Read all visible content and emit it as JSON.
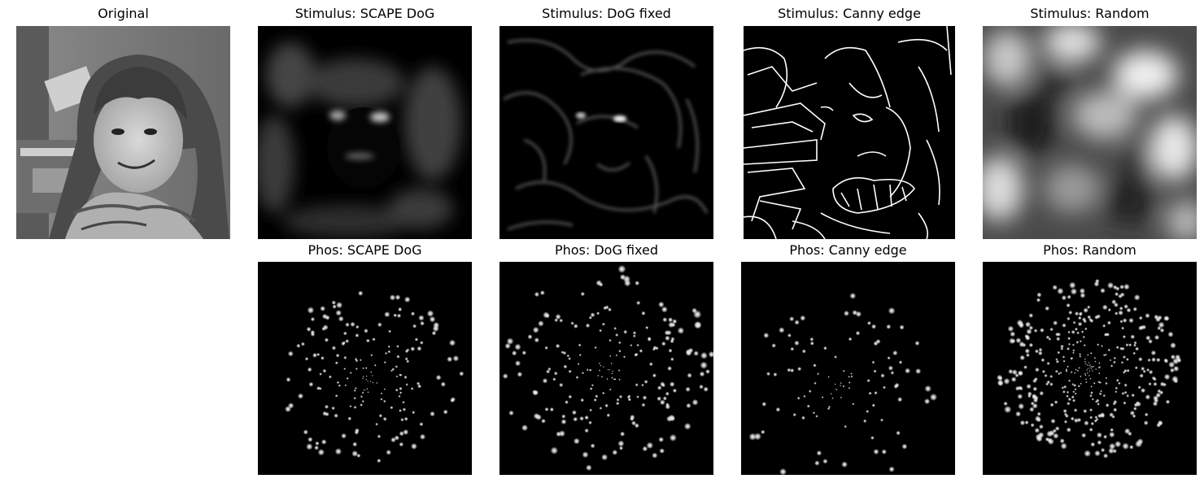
{
  "figure": {
    "rows": [
      {
        "panels": [
          {
            "id": "original",
            "title": "Original",
            "kind": "photo"
          },
          {
            "id": "stim-scape",
            "title": "Stimulus: SCAPE DoG",
            "kind": "dog-scape"
          },
          {
            "id": "stim-dog",
            "title": "Stimulus: DoG fixed",
            "kind": "dog-fixed"
          },
          {
            "id": "stim-canny",
            "title": "Stimulus: Canny edge",
            "kind": "canny"
          },
          {
            "id": "stim-random",
            "title": "Stimulus: Random",
            "kind": "random"
          }
        ]
      },
      {
        "panels": [
          {
            "id": "empty",
            "title": "",
            "kind": "empty"
          },
          {
            "id": "phos-scape",
            "title": "Phos: SCAPE DoG",
            "kind": "phosphenes"
          },
          {
            "id": "phos-dog",
            "title": "Phos: DoG fixed",
            "kind": "phosphenes"
          },
          {
            "id": "phos-canny",
            "title": "Phos: Canny edge",
            "kind": "phosphenes"
          },
          {
            "id": "phos-random",
            "title": "Phos: Random",
            "kind": "phosphenes"
          }
        ]
      }
    ]
  },
  "colors": {
    "background": "#ffffff",
    "image_background": "#000000",
    "title_text": "#000000"
  }
}
